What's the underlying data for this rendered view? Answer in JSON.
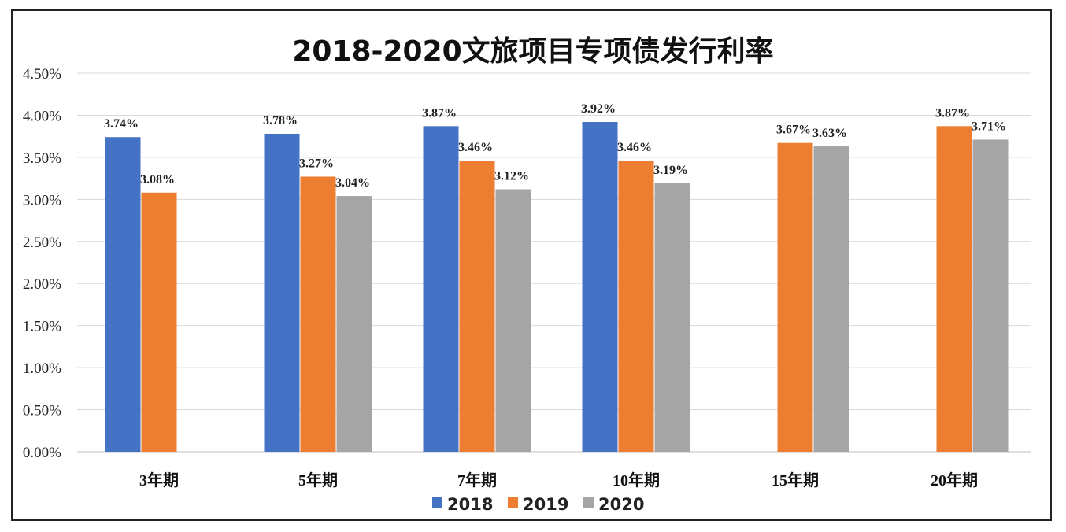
{
  "chart_data": {
    "type": "bar",
    "title": "2018-2020文旅项目专项债发行利率",
    "categories": [
      "3年期",
      "5年期",
      "7年期",
      "10年期",
      "15年期",
      "20年期"
    ],
    "series": [
      {
        "name": "2018",
        "color": "#4472C4",
        "values": [
          3.74,
          3.78,
          3.87,
          3.92,
          null,
          null
        ],
        "labels": [
          "3.74%",
          "3.78%",
          "3.87%",
          "3.92%",
          "",
          ""
        ]
      },
      {
        "name": "2019",
        "color": "#ED7D31",
        "values": [
          3.08,
          3.27,
          3.46,
          3.46,
          3.67,
          3.87
        ],
        "labels": [
          "3.08%",
          "3.27%",
          "3.46%",
          "3.46%",
          "3.67%",
          "3.87%"
        ]
      },
      {
        "name": "2020",
        "color": "#A5A5A5",
        "values": [
          null,
          3.04,
          3.12,
          3.19,
          3.63,
          3.71
        ],
        "labels": [
          "",
          "3.04%",
          "3.12%",
          "3.19%",
          "3.63%",
          "3.71%"
        ]
      }
    ],
    "ylim": [
      0,
      4.5
    ],
    "yticks": [
      "0.00%",
      "0.50%",
      "1.00%",
      "1.50%",
      "2.00%",
      "2.50%",
      "3.00%",
      "3.50%",
      "4.00%",
      "4.50%"
    ],
    "grid": true,
    "legend": "bottom"
  }
}
